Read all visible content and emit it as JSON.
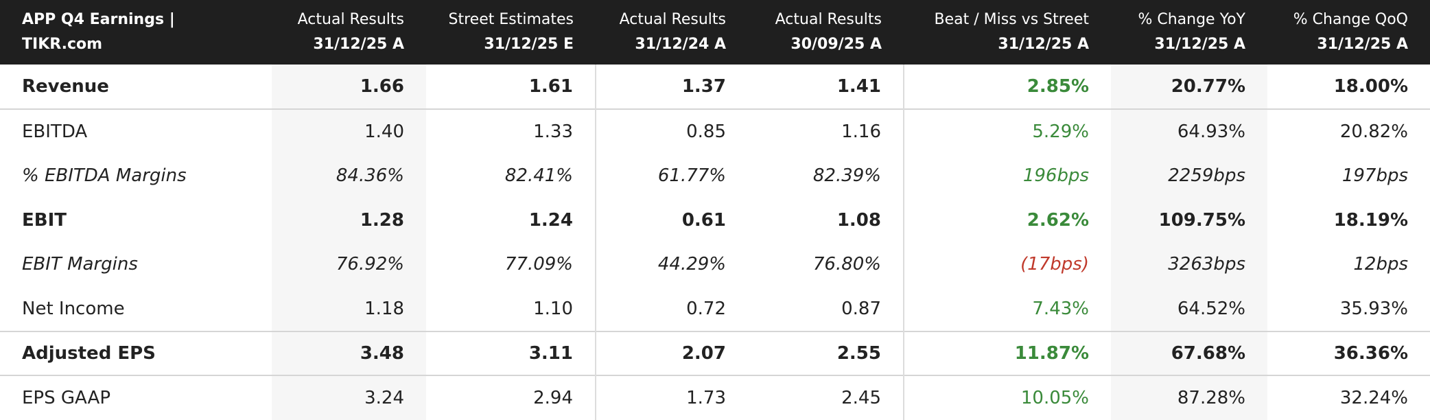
{
  "header": {
    "title": "APP Q4 Earnings | TIKR.com"
  },
  "columns": [
    {
      "name": "Actual Results",
      "date": "31/12/25 A"
    },
    {
      "name": "Street Estimates",
      "date": "31/12/25 E"
    },
    {
      "name": "Actual Results",
      "date": "31/12/24 A"
    },
    {
      "name": "Actual Results",
      "date": "30/09/25 A"
    },
    {
      "name": "Beat / Miss vs Street",
      "date": "31/12/25 A"
    },
    {
      "name": "% Change YoY",
      "date": "31/12/25 A"
    },
    {
      "name": "% Change QoQ",
      "date": "31/12/25 A"
    }
  ],
  "shaded_columns": [
    0,
    5
  ],
  "divider_columns": [
    2,
    4
  ],
  "rows": [
    {
      "label": "Revenue",
      "style": "bold",
      "beat_color": "#3a8a3a",
      "values": [
        "1.66",
        "1.61",
        "1.37",
        "1.41",
        "2.85%",
        "20.77%",
        "18.00%"
      ]
    },
    {
      "label": "EBITDA",
      "style": "normal",
      "beat_color": "#3a8a3a",
      "separator": true,
      "values": [
        "1.40",
        "1.33",
        "0.85",
        "1.16",
        "5.29%",
        "64.93%",
        "20.82%"
      ]
    },
    {
      "label": "% EBITDA Margins",
      "style": "italic",
      "beat_color": "#3a8a3a",
      "values": [
        "84.36%",
        "82.41%",
        "61.77%",
        "82.39%",
        "196bps",
        "2259bps",
        "197bps"
      ]
    },
    {
      "label": "EBIT",
      "style": "bold",
      "beat_color": "#3a8a3a",
      "values": [
        "1.28",
        "1.24",
        "0.61",
        "1.08",
        "2.62%",
        "109.75%",
        "18.19%"
      ]
    },
    {
      "label": "EBIT Margins",
      "style": "italic",
      "beat_color": "#c0392b",
      "values": [
        "76.92%",
        "77.09%",
        "44.29%",
        "76.80%",
        "(17bps)",
        "3263bps",
        "12bps"
      ]
    },
    {
      "label": "Net Income",
      "style": "normal",
      "beat_color": "#3a8a3a",
      "values": [
        "1.18",
        "1.10",
        "0.72",
        "0.87",
        "7.43%",
        "64.52%",
        "35.93%"
      ]
    },
    {
      "label": "Adjusted EPS",
      "style": "bold",
      "beat_color": "#3a8a3a",
      "separator": true,
      "values": [
        "3.48",
        "3.11",
        "2.07",
        "2.55",
        "11.87%",
        "67.68%",
        "36.36%"
      ]
    },
    {
      "label": "EPS GAAP",
      "style": "normal",
      "beat_color": "#3a8a3a",
      "separator": true,
      "values": [
        "3.24",
        "2.94",
        "1.73",
        "2.45",
        "10.05%",
        "87.28%",
        "32.24%"
      ]
    }
  ]
}
